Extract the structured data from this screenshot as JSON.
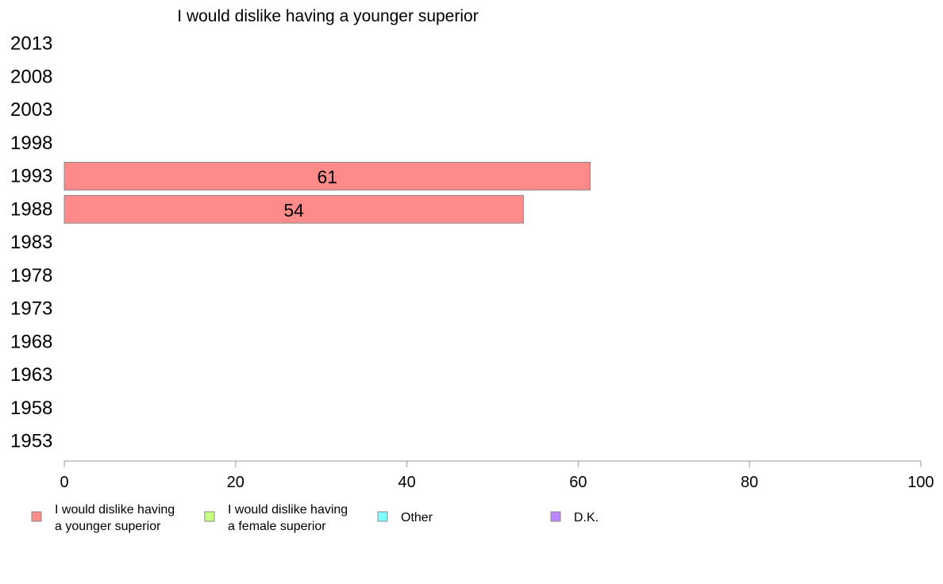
{
  "chart_data": {
    "type": "bar",
    "orientation": "horizontal",
    "title": "I would dislike having a younger superior",
    "categories": [
      "2013",
      "2008",
      "2003",
      "1998",
      "1993",
      "1988",
      "1983",
      "1978",
      "1973",
      "1968",
      "1963",
      "1958",
      "1953"
    ],
    "series": [
      {
        "name": "I would dislike having a younger superior",
        "color": "#ff8a8a",
        "values": [
          null,
          null,
          null,
          null,
          61.4,
          53.6,
          null,
          null,
          null,
          null,
          null,
          null,
          null
        ],
        "labels": [
          "",
          "",
          "",
          "",
          "61",
          "54",
          "",
          "",
          "",
          "",
          "",
          "",
          ""
        ]
      },
      {
        "name": "I would dislike having a female superior",
        "color": "#c8ff80",
        "values": [
          null,
          null,
          null,
          null,
          null,
          null,
          null,
          null,
          null,
          null,
          null,
          null,
          null
        ]
      },
      {
        "name": "Other",
        "color": "#80ffff",
        "values": [
          null,
          null,
          null,
          null,
          null,
          null,
          null,
          null,
          null,
          null,
          null,
          null,
          null
        ]
      },
      {
        "name": "D.K.",
        "color": "#bb88ff",
        "values": [
          null,
          null,
          null,
          null,
          null,
          null,
          null,
          null,
          null,
          null,
          null,
          null,
          null
        ]
      }
    ],
    "xlim": [
      0,
      100
    ],
    "xticks": [
      0,
      20,
      40,
      60,
      80,
      100
    ],
    "xtick_labels": [
      "0",
      "20",
      "40",
      "60",
      "80",
      "100"
    ],
    "grid": false,
    "legend": {
      "position": "bottom",
      "entries": [
        {
          "lines": [
            "I would dislike having",
            "a younger superior"
          ],
          "color": "#ff8a8a"
        },
        {
          "lines": [
            "I would dislike having",
            "a female superior"
          ],
          "color": "#c8ff80"
        },
        {
          "lines": [
            "Other"
          ],
          "color": "#80ffff"
        },
        {
          "lines": [
            "D.K."
          ],
          "color": "#bb88ff"
        }
      ]
    }
  }
}
